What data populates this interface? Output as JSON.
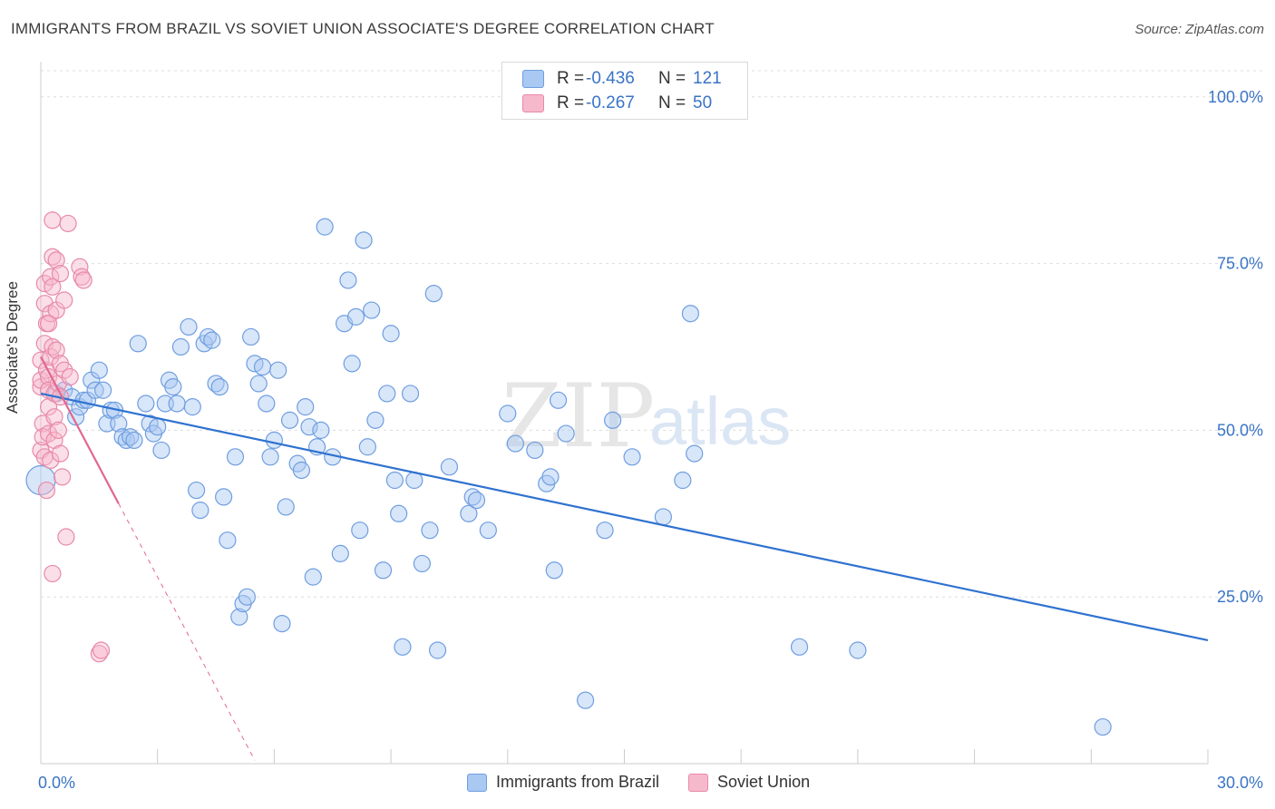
{
  "title": "IMMIGRANTS FROM BRAZIL VS SOVIET UNION ASSOCIATE'S DEGREE CORRELATION CHART",
  "source": "Source: ZipAtlas.com",
  "watermark": {
    "zip": "ZIP",
    "atlas": "atlas"
  },
  "legend": {
    "rows": [
      {
        "r_label": "R =",
        "r_value": "-0.436",
        "n_label": "N =",
        "n_value": "121",
        "color": "#a9c8f2",
        "border": "#6f9ee0"
      },
      {
        "r_label": "R =",
        "r_value": "-0.267",
        "n_label": "N =",
        "n_value": "50",
        "color": "#f6b9cc",
        "border": "#e889a8"
      }
    ]
  },
  "bottom_legend": [
    {
      "label": "Immigrants from Brazil",
      "color": "#a9c8f2",
      "border": "#6f9ee0"
    },
    {
      "label": "Soviet Union",
      "color": "#f6b9cc",
      "border": "#e889a8"
    }
  ],
  "chart_data": {
    "type": "scatter",
    "title": "IMMIGRANTS FROM BRAZIL VS SOVIET UNION ASSOCIATE'S DEGREE CORRELATION CHART",
    "xlabel": "",
    "ylabel": "Associate's Degree",
    "xlim": [
      0,
      30
    ],
    "ylim": [
      0,
      105
    ],
    "x_ticks": [
      "0.0%",
      "30.0%"
    ],
    "y_ticks": [
      {
        "value": 25,
        "label": "25.0%"
      },
      {
        "value": 50,
        "label": "50.0%"
      },
      {
        "value": 75,
        "label": "75.0%"
      },
      {
        "value": 100,
        "label": "100.0%"
      }
    ],
    "grid": true,
    "legend_position": "top-center",
    "series": [
      {
        "name": "Immigrants from Brazil",
        "color": "#6f9ee0",
        "fill": "rgba(169,200,242,0.45)",
        "trend": {
          "x": [
            0,
            30
          ],
          "y": [
            55.5,
            18.5
          ],
          "color": "#2f72d0"
        },
        "points": [
          [
            0.0,
            42.5
          ],
          [
            0.4,
            55.5
          ],
          [
            0.6,
            56.0
          ],
          [
            0.8,
            55.0
          ],
          [
            0.9,
            52.0
          ],
          [
            1.0,
            53.5
          ],
          [
            1.1,
            54.5
          ],
          [
            1.2,
            54.5
          ],
          [
            1.3,
            57.5
          ],
          [
            1.4,
            56.0
          ],
          [
            1.5,
            59.0
          ],
          [
            1.6,
            56.0
          ],
          [
            1.7,
            51.0
          ],
          [
            1.8,
            53.0
          ],
          [
            1.9,
            53.0
          ],
          [
            2.0,
            51.0
          ],
          [
            2.1,
            49.0
          ],
          [
            2.2,
            48.5
          ],
          [
            2.3,
            49.0
          ],
          [
            2.4,
            48.5
          ],
          [
            2.5,
            63.0
          ],
          [
            2.7,
            54.0
          ],
          [
            2.8,
            51.0
          ],
          [
            2.9,
            49.5
          ],
          [
            3.0,
            50.5
          ],
          [
            3.1,
            47.0
          ],
          [
            3.2,
            54.0
          ],
          [
            3.3,
            57.5
          ],
          [
            3.4,
            56.5
          ],
          [
            3.5,
            54.0
          ],
          [
            3.6,
            62.5
          ],
          [
            3.8,
            65.5
          ],
          [
            3.9,
            53.5
          ],
          [
            4.0,
            41.0
          ],
          [
            4.1,
            38.0
          ],
          [
            4.2,
            63.0
          ],
          [
            4.3,
            64.0
          ],
          [
            4.4,
            63.5
          ],
          [
            4.5,
            57.0
          ],
          [
            4.6,
            56.5
          ],
          [
            4.7,
            40.0
          ],
          [
            4.8,
            33.5
          ],
          [
            5.0,
            46.0
          ],
          [
            5.1,
            22.0
          ],
          [
            5.2,
            24.0
          ],
          [
            5.3,
            25.0
          ],
          [
            5.4,
            64.0
          ],
          [
            5.5,
            60.0
          ],
          [
            5.6,
            57.0
          ],
          [
            5.7,
            59.5
          ],
          [
            5.8,
            54.0
          ],
          [
            5.9,
            46.0
          ],
          [
            6.0,
            48.5
          ],
          [
            6.1,
            59.0
          ],
          [
            6.2,
            21.0
          ],
          [
            6.3,
            38.5
          ],
          [
            6.4,
            51.5
          ],
          [
            6.6,
            45.0
          ],
          [
            6.7,
            44.0
          ],
          [
            6.8,
            53.5
          ],
          [
            6.9,
            50.5
          ],
          [
            7.0,
            28.0
          ],
          [
            7.1,
            47.5
          ],
          [
            7.2,
            50.0
          ],
          [
            7.3,
            80.5
          ],
          [
            7.5,
            46.0
          ],
          [
            7.7,
            31.5
          ],
          [
            7.8,
            66.0
          ],
          [
            7.9,
            72.5
          ],
          [
            8.0,
            60.0
          ],
          [
            8.1,
            67.0
          ],
          [
            8.2,
            35.0
          ],
          [
            8.3,
            78.5
          ],
          [
            8.4,
            47.5
          ],
          [
            8.5,
            68.0
          ],
          [
            8.6,
            51.5
          ],
          [
            8.8,
            29.0
          ],
          [
            8.9,
            55.5
          ],
          [
            9.0,
            64.5
          ],
          [
            9.1,
            42.5
          ],
          [
            9.2,
            37.5
          ],
          [
            9.3,
            17.5
          ],
          [
            9.5,
            55.5
          ],
          [
            9.6,
            42.5
          ],
          [
            9.8,
            30.0
          ],
          [
            10.0,
            35.0
          ],
          [
            10.1,
            70.5
          ],
          [
            10.2,
            17.0
          ],
          [
            10.5,
            44.5
          ],
          [
            11.0,
            37.5
          ],
          [
            11.1,
            40.0
          ],
          [
            11.2,
            39.5
          ],
          [
            11.5,
            35.0
          ],
          [
            12.0,
            52.5
          ],
          [
            12.2,
            48.0
          ],
          [
            12.7,
            47.0
          ],
          [
            13.0,
            42.0
          ],
          [
            13.1,
            43.0
          ],
          [
            13.2,
            29.0
          ],
          [
            13.3,
            54.5
          ],
          [
            13.5,
            49.5
          ],
          [
            14.0,
            9.5
          ],
          [
            14.5,
            35.0
          ],
          [
            14.7,
            51.5
          ],
          [
            15.2,
            46.0
          ],
          [
            16.0,
            37.0
          ],
          [
            16.5,
            42.5
          ],
          [
            16.7,
            67.5
          ],
          [
            16.8,
            46.5
          ],
          [
            19.5,
            17.5
          ],
          [
            21.0,
            17.0
          ],
          [
            27.3,
            5.5
          ]
        ]
      },
      {
        "name": "Soviet Union",
        "color": "#e889a8",
        "fill": "rgba(246,185,204,0.45)",
        "trend": {
          "x": [
            0,
            2.0
          ],
          "y": [
            61.0,
            39.0
          ],
          "color": "#e06890",
          "dashed_extension": {
            "x": [
              2.0,
              5.5
            ],
            "y": [
              39.0,
              0.5
            ]
          }
        },
        "points": [
          [
            0.0,
            56.5
          ],
          [
            0.0,
            60.5
          ],
          [
            0.0,
            57.5
          ],
          [
            0.0,
            47.0
          ],
          [
            0.05,
            51.0
          ],
          [
            0.05,
            49.0
          ],
          [
            0.1,
            72.0
          ],
          [
            0.1,
            63.0
          ],
          [
            0.1,
            69.0
          ],
          [
            0.1,
            46.0
          ],
          [
            0.15,
            66.0
          ],
          [
            0.15,
            59.0
          ],
          [
            0.2,
            58.0
          ],
          [
            0.2,
            56.0
          ],
          [
            0.2,
            53.5
          ],
          [
            0.2,
            49.5
          ],
          [
            0.25,
            73.0
          ],
          [
            0.25,
            67.5
          ],
          [
            0.25,
            61.0
          ],
          [
            0.25,
            45.5
          ],
          [
            0.3,
            81.5
          ],
          [
            0.3,
            76.0
          ],
          [
            0.3,
            71.5
          ],
          [
            0.3,
            62.5
          ],
          [
            0.35,
            55.5
          ],
          [
            0.35,
            52.0
          ],
          [
            0.35,
            48.5
          ],
          [
            0.4,
            75.5
          ],
          [
            0.4,
            68.0
          ],
          [
            0.4,
            62.0
          ],
          [
            0.45,
            57.0
          ],
          [
            0.45,
            50.0
          ],
          [
            0.5,
            73.5
          ],
          [
            0.5,
            60.0
          ],
          [
            0.5,
            55.0
          ],
          [
            0.5,
            46.5
          ],
          [
            0.55,
            43.0
          ],
          [
            0.6,
            59.0
          ],
          [
            0.6,
            69.5
          ],
          [
            0.65,
            34.0
          ],
          [
            0.7,
            81.0
          ],
          [
            0.75,
            58.0
          ],
          [
            0.3,
            28.5
          ],
          [
            1.0,
            74.5
          ],
          [
            1.05,
            73.0
          ],
          [
            1.1,
            72.5
          ],
          [
            1.5,
            16.5
          ],
          [
            1.55,
            17.0
          ],
          [
            0.15,
            41.0
          ],
          [
            0.2,
            66.0
          ]
        ]
      }
    ]
  }
}
